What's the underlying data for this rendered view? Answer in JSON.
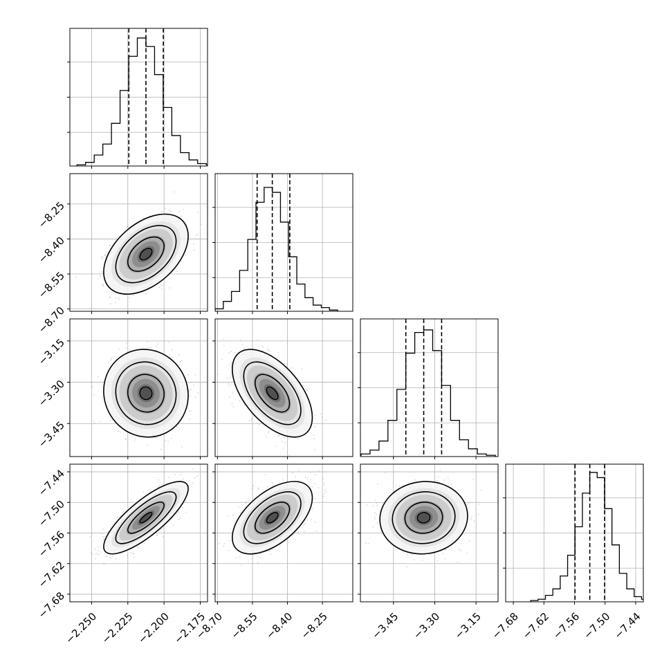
{
  "chart_data": {
    "type": "corner",
    "grid": true,
    "parameters": [
      {
        "range": [
          -2.265,
          -2.17
        ],
        "ticks": [
          -2.25,
          -2.225,
          -2.2,
          -2.175
        ],
        "tick_labels": [
          "−2.250",
          "−2.225",
          "−2.200",
          "−2.175"
        ],
        "mean": -2.2125,
        "quantiles": [
          -2.2243,
          -2.2125,
          -2.2005
        ]
      },
      {
        "range": [
          -8.71,
          -8.12
        ],
        "ticks": [
          -8.7,
          -8.55,
          -8.4,
          -8.25
        ],
        "tick_labels": [
          "−8.70",
          "−8.55",
          "−8.40",
          "−8.25"
        ],
        "mean": -8.465,
        "quantiles": [
          -8.53,
          -8.465,
          -8.39
        ]
      },
      {
        "range": [
          -3.57,
          -3.07
        ],
        "ticks": [
          -3.45,
          -3.3,
          -3.15
        ],
        "tick_labels": [
          "−3.45",
          "−3.30",
          "−3.15"
        ],
        "mean": -3.34,
        "quantiles": [
          -3.405,
          -3.34,
          -3.275
        ]
      },
      {
        "range": [
          -7.695,
          -7.425
        ],
        "ticks": [
          -7.68,
          -7.62,
          -7.56,
          -7.5,
          -7.44
        ],
        "tick_labels": [
          "−7.68",
          "−7.62",
          "−7.56",
          "−7.50",
          "−7.44"
        ],
        "mean": -7.53,
        "quantiles": [
          -7.559,
          -7.53,
          -7.501
        ]
      }
    ],
    "histograms": [
      {
        "counts": [
          1,
          3,
          9,
          18,
          35,
          62,
          90,
          105,
          98,
          75,
          48,
          25,
          11,
          5,
          2,
          1
        ],
        "max_frac": 0.93
      },
      {
        "counts": [
          1,
          2,
          8,
          16,
          33,
          58,
          88,
          100,
          96,
          72,
          44,
          22,
          11,
          5,
          3,
          1
        ],
        "max_frac": 0.9
      },
      {
        "counts": [
          1,
          2,
          5,
          12,
          28,
          52,
          80,
          96,
          98,
          82,
          55,
          28,
          13,
          6,
          2,
          1
        ],
        "max_frac": 0.92
      },
      {
        "counts": [
          1,
          2,
          5,
          10,
          20,
          36,
          58,
          84,
          100,
          96,
          72,
          44,
          22,
          10,
          4,
          2
        ],
        "max_frac": 0.94
      }
    ],
    "correlations": {
      "1-0": 0.45,
      "2-0": -0.05,
      "2-1": -0.55,
      "3-0": 0.8,
      "3-1": 0.55,
      "3-2": 0.05
    }
  }
}
